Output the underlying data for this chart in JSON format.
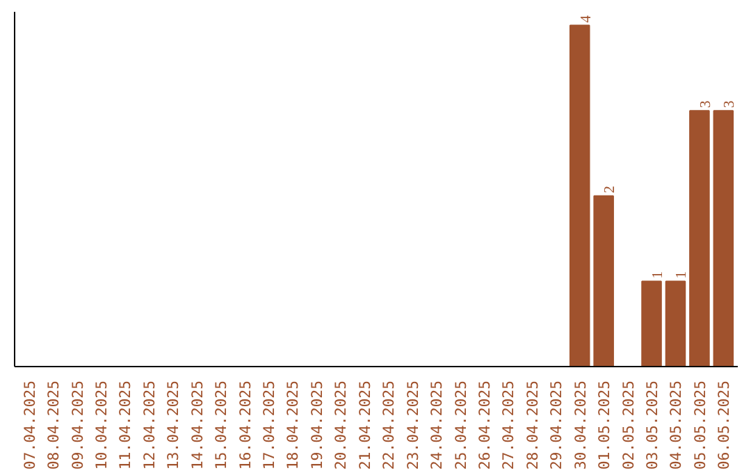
{
  "chart_data": {
    "type": "bar",
    "categories": [
      "07.04.2025",
      "08.04.2025",
      "09.04.2025",
      "10.04.2025",
      "11.04.2025",
      "12.04.2025",
      "13.04.2025",
      "14.04.2025",
      "15.04.2025",
      "16.04.2025",
      "17.04.2025",
      "18.04.2025",
      "19.04.2025",
      "20.04.2025",
      "21.04.2025",
      "22.04.2025",
      "23.04.2025",
      "24.04.2025",
      "25.04.2025",
      "26.04.2025",
      "27.04.2025",
      "28.04.2025",
      "29.04.2025",
      "30.04.2025",
      "01.05.2025",
      "02.05.2025",
      "03.05.2025",
      "04.05.2025",
      "05.05.2025",
      "06.05.2025"
    ],
    "values": [
      null,
      null,
      null,
      null,
      null,
      null,
      null,
      null,
      null,
      null,
      null,
      null,
      null,
      null,
      null,
      null,
      null,
      null,
      null,
      null,
      null,
      null,
      null,
      4,
      2,
      null,
      1,
      1,
      3,
      3
    ],
    "data_labels": true,
    "color": "#a0522d",
    "grid": false,
    "tick_labels": "x"
  }
}
